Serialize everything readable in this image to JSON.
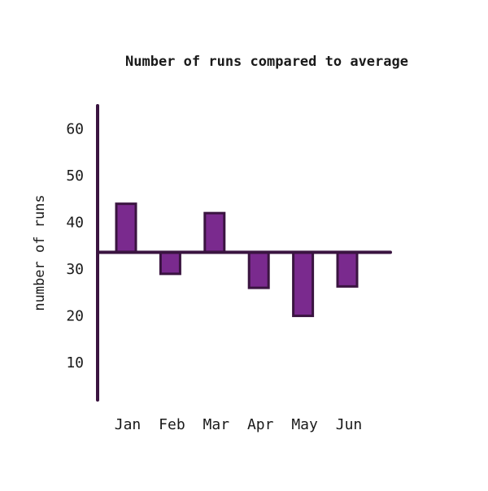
{
  "colors": {
    "bar_fill": "#7a2a8e",
    "bar_stroke": "#3a1440",
    "axis": "#3a1440",
    "text": "#1a1a1a",
    "background": "#ffffff"
  },
  "chart_data": {
    "type": "bar",
    "title": "Number of runs compared to average",
    "xlabel": "",
    "ylabel": "number of runs",
    "categories": [
      "Jan",
      "Feb",
      "Mar",
      "Apr",
      "May",
      "Jun"
    ],
    "values": [
      44,
      29,
      42,
      26,
      20,
      26.3
    ],
    "baseline": 33.6,
    "yticks": [
      10,
      20,
      30,
      40,
      50,
      60
    ],
    "ylim": [
      2,
      65
    ],
    "grid": false,
    "legend": "none"
  }
}
